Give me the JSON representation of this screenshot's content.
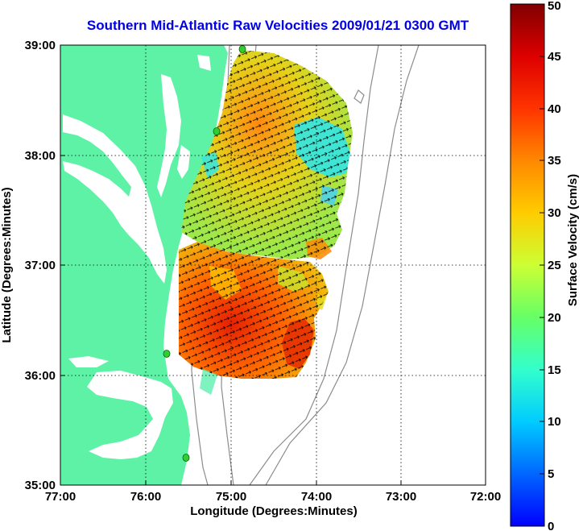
{
  "title": "Southern Mid-Atlantic Raw Velocities 2009/01/21 0300 GMT",
  "xlabel": "Longitude (Degrees:Minutes)",
  "ylabel": "Latitude (Degrees:Minutes)",
  "x_ticks": [
    "77:00",
    "76:00",
    "75:00",
    "74:00",
    "73:00",
    "72:00"
  ],
  "y_ticks": [
    "39:00",
    "38:00",
    "37:00",
    "36:00",
    "35:00"
  ],
  "colorbar": {
    "label": "Surface Velocity (cm/s)",
    "ticks": [
      "0",
      "5",
      "10",
      "15",
      "20",
      "25",
      "30",
      "35",
      "40",
      "45",
      "50"
    ]
  },
  "colors": {
    "land": "#5ef2a6",
    "title": "#0000e6",
    "bathymetry": "#8c8c8c",
    "station": "#33cc33"
  }
}
